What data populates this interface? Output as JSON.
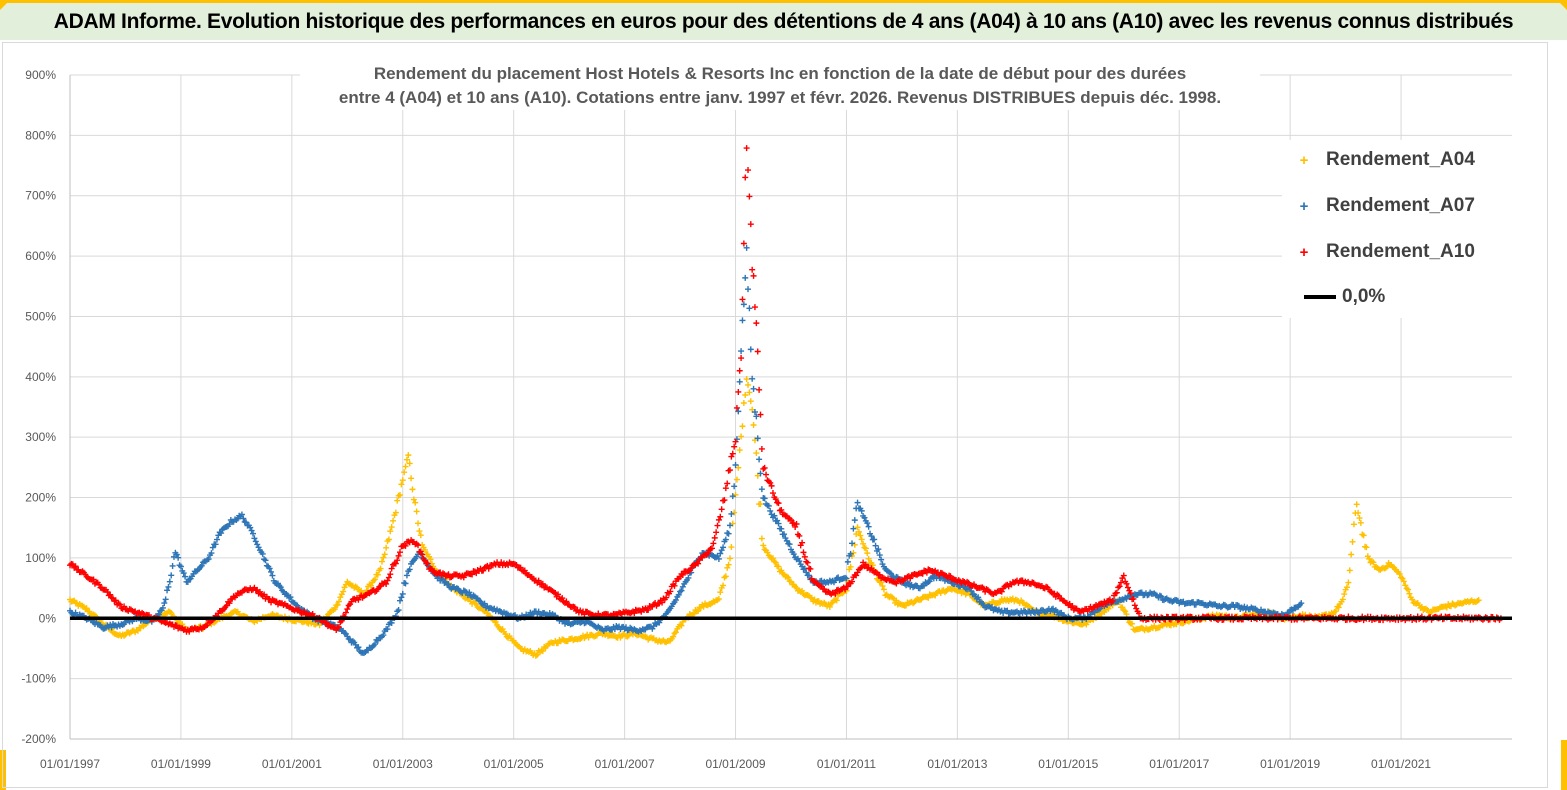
{
  "header": {
    "title": "ADAM Informe. Evolution historique des performances en euros pour des détentions de 4 ans (A04) à 10 ans (A10) avec les revenus connus distribués"
  },
  "colors": {
    "a04": "#ffc000",
    "a07": "#2e75b6",
    "a10": "#ff0000",
    "zero": "#000000",
    "grid": "#d9d9d9",
    "axis_text": "#595959"
  },
  "chart_data": {
    "type": "scatter",
    "title_line1": "Rendement du placement Host Hotels & Resorts Inc en fonction de la date de début pour des durées",
    "title_line2": "entre 4 (A04) et 10 ans (A10).  Cotations entre janv. 1997 et févr. 2026. Revenus DISTRIBUES depuis déc. 1998.",
    "xlabel": "",
    "ylabel": "",
    "xlim": [
      1997.0,
      2023.0
    ],
    "ylim": [
      -200,
      900
    ],
    "y_ticks": [
      -200,
      -100,
      0,
      100,
      200,
      300,
      400,
      500,
      600,
      700,
      800,
      900
    ],
    "y_tick_labels": [
      "-200%",
      "-100%",
      "0%",
      "100%",
      "200%",
      "300%",
      "400%",
      "500%",
      "600%",
      "700%",
      "800%",
      "900%"
    ],
    "x_ticks": [
      1997,
      1999,
      2001,
      2003,
      2005,
      2007,
      2009,
      2011,
      2013,
      2015,
      2017,
      2019,
      2021
    ],
    "x_tick_labels": [
      "01/01/1997",
      "01/01/1999",
      "01/01/2001",
      "01/01/2003",
      "01/01/2005",
      "01/01/2007",
      "01/01/2009",
      "01/01/2011",
      "01/01/2013",
      "01/01/2015",
      "01/01/2017",
      "01/01/2019",
      "01/01/2021"
    ],
    "legend_position": "top-right",
    "series": [
      {
        "name": "Rendement_A04",
        "marker": "+",
        "x": [
          1997.0,
          1997.3,
          1997.6,
          1997.9,
          1998.2,
          1998.5,
          1998.8,
          1999.1,
          1999.4,
          1999.7,
          2000.0,
          2000.3,
          2000.6,
          2000.9,
          2001.2,
          2001.5,
          2001.8,
          2002.0,
          2002.3,
          2002.6,
          2002.8,
          2003.0,
          2003.1,
          2003.2,
          2003.35,
          2003.6,
          2003.9,
          2004.2,
          2004.5,
          2004.8,
          2005.1,
          2005.4,
          2005.7,
          2006.0,
          2006.3,
          2006.6,
          2006.9,
          2007.2,
          2007.5,
          2007.8,
          2008.1,
          2008.4,
          2008.7,
          2008.9,
          2009.0,
          2009.1,
          2009.2,
          2009.3,
          2009.5,
          2009.8,
          2010.1,
          2010.4,
          2010.7,
          2011.0,
          2011.2,
          2011.4,
          2011.7,
          2012.0,
          2012.3,
          2012.6,
          2012.9,
          2013.2,
          2013.5,
          2013.8,
          2014.1,
          2014.4,
          2014.7,
          2015.0,
          2015.3,
          2015.6,
          2015.9,
          2016.2,
          2016.5,
          2016.8,
          2017.1,
          2017.4,
          2017.7,
          2018.0,
          2018.3,
          2018.6,
          2018.9,
          2019.2,
          2019.5,
          2019.8,
          2019.95,
          2020.05,
          2020.2,
          2020.4,
          2020.6,
          2020.8,
          2021.0,
          2021.2,
          2021.5,
          2021.8,
          2022.1,
          2022.4
        ],
        "y": [
          30,
          15,
          -10,
          -30,
          -20,
          0,
          10,
          -20,
          -15,
          0,
          10,
          -5,
          5,
          0,
          -5,
          -10,
          20,
          60,
          40,
          80,
          150,
          230,
          270,
          200,
          120,
          80,
          50,
          30,
          10,
          -20,
          -50,
          -60,
          -40,
          -35,
          -30,
          -25,
          -30,
          -25,
          -35,
          -40,
          0,
          20,
          30,
          100,
          200,
          300,
          400,
          350,
          120,
          80,
          50,
          30,
          20,
          50,
          150,
          100,
          40,
          20,
          30,
          40,
          50,
          40,
          20,
          30,
          30,
          10,
          5,
          -5,
          -10,
          10,
          30,
          -20,
          -15,
          -10,
          -5,
          0,
          5,
          0,
          5,
          10,
          0,
          5,
          0,
          10,
          30,
          60,
          190,
          100,
          80,
          90,
          70,
          30,
          10,
          20,
          25,
          30
        ]
      },
      {
        "name": "Rendement_A07",
        "marker": "+",
        "x": [
          1997.0,
          1997.3,
          1997.6,
          1997.9,
          1998.2,
          1998.5,
          1998.7,
          1998.9,
          1999.1,
          1999.3,
          1999.5,
          1999.7,
          1999.9,
          2000.1,
          2000.3,
          2000.5,
          2000.7,
          2000.9,
          2001.1,
          2001.4,
          2001.7,
          2001.9,
          2002.1,
          2002.3,
          2002.5,
          2002.7,
          2002.9,
          2003.1,
          2003.3,
          2003.6,
          2003.9,
          2004.2,
          2004.5,
          2004.8,
          2005.1,
          2005.4,
          2005.7,
          2006.0,
          2006.3,
          2006.6,
          2006.9,
          2007.2,
          2007.5,
          2007.8,
          2008.1,
          2008.4,
          2008.7,
          2008.9,
          2009.0,
          2009.1,
          2009.2,
          2009.3,
          2009.5,
          2009.8,
          2010.1,
          2010.4,
          2010.7,
          2011.0,
          2011.2,
          2011.4,
          2011.7,
          2012.0,
          2012.3,
          2012.6,
          2012.9,
          2013.2,
          2013.5,
          2013.8,
          2014.1,
          2014.4,
          2014.7,
          2015.0,
          2015.3,
          2015.6,
          2015.9,
          2016.2,
          2016.5,
          2016.8,
          2017.1,
          2017.4,
          2017.7,
          2018.0,
          2018.3,
          2018.6,
          2018.9,
          2019.2
        ],
        "y": [
          10,
          0,
          -15,
          -10,
          0,
          -5,
          20,
          110,
          60,
          80,
          100,
          140,
          160,
          170,
          140,
          100,
          60,
          40,
          20,
          0,
          -10,
          -20,
          -40,
          -60,
          -40,
          -20,
          10,
          80,
          110,
          70,
          50,
          40,
          20,
          10,
          0,
          10,
          5,
          -10,
          -5,
          -20,
          -15,
          -20,
          -15,
          10,
          60,
          110,
          100,
          150,
          250,
          450,
          600,
          400,
          200,
          150,
          100,
          60,
          60,
          70,
          190,
          150,
          80,
          60,
          50,
          70,
          60,
          50,
          20,
          10,
          10,
          10,
          15,
          0,
          0,
          20,
          30,
          40,
          40,
          30,
          25,
          25,
          20,
          20,
          15,
          10,
          5,
          25
        ]
      },
      {
        "name": "Rendement_A10",
        "marker": "+",
        "x": [
          1997.0,
          1997.3,
          1997.6,
          1997.9,
          1998.2,
          1998.5,
          1998.8,
          1999.1,
          1999.4,
          1999.7,
          2000.0,
          2000.3,
          2000.6,
          2000.9,
          2001.2,
          2001.5,
          2001.8,
          2002.1,
          2002.4,
          2002.7,
          2003.0,
          2003.2,
          2003.5,
          2003.8,
          2004.1,
          2004.4,
          2004.7,
          2005.0,
          2005.3,
          2005.6,
          2005.9,
          2006.2,
          2006.5,
          2006.8,
          2007.1,
          2007.4,
          2007.7,
          2008.0,
          2008.3,
          2008.6,
          2008.8,
          2009.0,
          2009.1,
          2009.2,
          2009.3,
          2009.5,
          2009.8,
          2010.1,
          2010.4,
          2010.7,
          2011.0,
          2011.3,
          2011.6,
          2011.9,
          2012.2,
          2012.5,
          2012.8,
          2013.1,
          2013.4,
          2013.7,
          2014.0,
          2014.3,
          2014.6,
          2014.9,
          2015.2,
          2015.5,
          2015.8,
          2016.0,
          2016.3,
          2016.8,
          2017.3,
          2017.8,
          2018.3,
          2018.8,
          2019.3,
          2019.8,
          2020.3,
          2020.8,
          2021.3,
          2021.8,
          2022.3,
          2022.8
        ],
        "y": [
          90,
          70,
          50,
          20,
          10,
          0,
          -10,
          -20,
          -15,
          10,
          40,
          50,
          30,
          20,
          10,
          0,
          -20,
          30,
          40,
          60,
          120,
          130,
          80,
          70,
          70,
          80,
          90,
          90,
          70,
          50,
          30,
          10,
          5,
          5,
          10,
          15,
          30,
          70,
          90,
          120,
          200,
          300,
          450,
          790,
          600,
          250,
          180,
          150,
          60,
          40,
          50,
          90,
          70,
          60,
          70,
          80,
          70,
          60,
          50,
          40,
          60,
          60,
          50,
          30,
          10,
          20,
          30,
          70,
          0,
          0,
          0,
          0,
          0,
          0,
          0,
          0,
          0,
          0,
          0,
          0,
          0,
          0
        ]
      },
      {
        "name": "0,0%",
        "type": "line",
        "y": 0
      }
    ]
  }
}
